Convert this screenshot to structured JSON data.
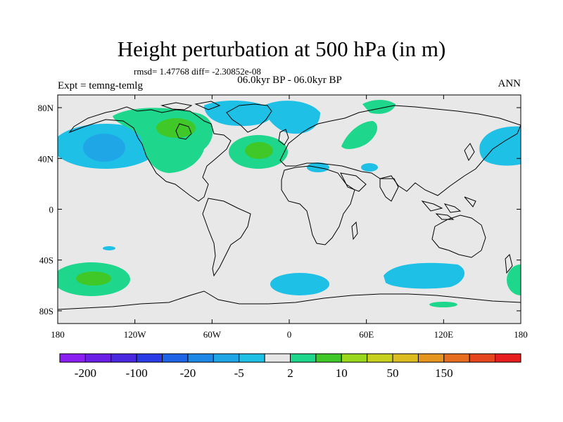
{
  "title": "Height perturbation at 500 hPa (in m)",
  "stats_line": "rmsd= 1.47768 diff= -2.30852e-08",
  "period_line": "06.0kyr BP - 06.0kyr BP",
  "expt_label": "Expt = temng-temlg",
  "season_label": "ANN",
  "background_color": "#e8e8e8",
  "lon_ticks": [
    "180",
    "120W",
    "60W",
    "0",
    "60E",
    "120E",
    "180"
  ],
  "lat_ticks": [
    "80N",
    "40N",
    "0",
    "40S",
    "80S"
  ],
  "colorbar": {
    "colors": [
      "#8b1ef0",
      "#6a1ee6",
      "#4a28e0",
      "#2a3ce6",
      "#1e64e6",
      "#1e88e6",
      "#1ea6e6",
      "#1ec0e6",
      "#e6e6e6",
      "#1ed68c",
      "#40c828",
      "#9ad81e",
      "#c8d01e",
      "#dcbc1e",
      "#e6961e",
      "#e66e1e",
      "#e6461e",
      "#e61e1e"
    ],
    "labels": [
      "-200",
      "-100",
      "-20",
      "-5",
      "2",
      "10",
      "50",
      "150"
    ]
  },
  "regions": [
    {
      "name": "north-pacific-negative",
      "color": "#1ec0e6"
    },
    {
      "name": "north-pacific-negative-core",
      "color": "#1ea6e6"
    },
    {
      "name": "north-america-positive",
      "color": "#1ed68c"
    },
    {
      "name": "hudson-bay-positive-core",
      "color": "#40c828"
    },
    {
      "name": "arctic-canada-negative",
      "color": "#1ec0e6"
    },
    {
      "name": "north-atlantic-positive",
      "color": "#1ed68c"
    },
    {
      "name": "north-atlantic-positive-core",
      "color": "#40c828"
    },
    {
      "name": "scandinavia-negative",
      "color": "#1ec0e6"
    },
    {
      "name": "europe-positive",
      "color": "#1ed68c"
    },
    {
      "name": "siberia-positive",
      "color": "#1ed68c"
    },
    {
      "name": "mediterranean-negative",
      "color": "#1ec0e6"
    },
    {
      "name": "middle-east-negative",
      "color": "#1ec0e6"
    },
    {
      "name": "east-asia-negative",
      "color": "#1ec0e6"
    },
    {
      "name": "south-pacific-positive",
      "color": "#1ed68c"
    },
    {
      "name": "south-pacific-positive-core",
      "color": "#40c828"
    },
    {
      "name": "south-atlantic-negative",
      "color": "#1ec0e6"
    },
    {
      "name": "indian-ocean-negative",
      "color": "#1ec0e6"
    },
    {
      "name": "antarctic-positive",
      "color": "#1ed68c"
    },
    {
      "name": "east-pacific-positive",
      "color": "#1ed68c"
    },
    {
      "name": "small-negative-pacific",
      "color": "#1ec0e6"
    }
  ]
}
